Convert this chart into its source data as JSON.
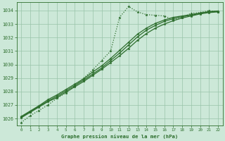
{
  "title": "Graphe pression niveau de la mer (hPa)",
  "bg_color": "#cce8d8",
  "grid_color": "#99c4aa",
  "line_color": "#2d6e2d",
  "marker": "*",
  "xlim": [
    -0.5,
    22.5
  ],
  "ylim": [
    1025.5,
    1034.6
  ],
  "yticks": [
    1026,
    1027,
    1028,
    1029,
    1030,
    1031,
    1032,
    1033,
    1034
  ],
  "xticks": [
    0,
    1,
    2,
    3,
    4,
    5,
    6,
    7,
    8,
    9,
    10,
    11,
    12,
    13,
    14,
    15,
    16,
    17,
    18,
    19,
    20,
    21,
    22
  ],
  "series": [
    {
      "data": [
        1025.7,
        1026.2,
        1026.6,
        1027.0,
        1027.5,
        1027.9,
        1028.4,
        1029.0,
        1029.6,
        1030.3,
        1031.0,
        1033.5,
        1034.3,
        1033.9,
        1033.7,
        1033.65,
        1033.6,
        1033.3,
        1033.5,
        1033.8,
        1033.85,
        1034.0,
        1033.9
      ],
      "linestyle": "dotted",
      "linewidth": 0.9,
      "markersize": 2.5
    },
    {
      "data": [
        1026.05,
        1026.45,
        1026.85,
        1027.25,
        1027.55,
        1027.95,
        1028.35,
        1028.75,
        1029.2,
        1029.65,
        1030.15,
        1030.65,
        1031.2,
        1031.8,
        1032.3,
        1032.7,
        1033.0,
        1033.25,
        1033.45,
        1033.6,
        1033.75,
        1033.85,
        1033.9
      ],
      "linestyle": "-",
      "linewidth": 0.9,
      "markersize": 2.5
    },
    {
      "data": [
        1026.1,
        1026.5,
        1026.9,
        1027.3,
        1027.65,
        1028.05,
        1028.45,
        1028.85,
        1029.3,
        1029.75,
        1030.3,
        1030.85,
        1031.45,
        1032.05,
        1032.55,
        1032.9,
        1033.2,
        1033.4,
        1033.55,
        1033.65,
        1033.8,
        1033.9,
        1033.95
      ],
      "linestyle": "-",
      "linewidth": 0.9,
      "markersize": 2.5
    },
    {
      "data": [
        1026.15,
        1026.55,
        1026.95,
        1027.4,
        1027.75,
        1028.15,
        1028.55,
        1028.95,
        1029.45,
        1029.9,
        1030.45,
        1031.05,
        1031.65,
        1032.25,
        1032.7,
        1033.05,
        1033.3,
        1033.5,
        1033.6,
        1033.7,
        1033.82,
        1033.92,
        1033.97
      ],
      "linestyle": "-",
      "linewidth": 0.9,
      "markersize": 2.5
    }
  ]
}
